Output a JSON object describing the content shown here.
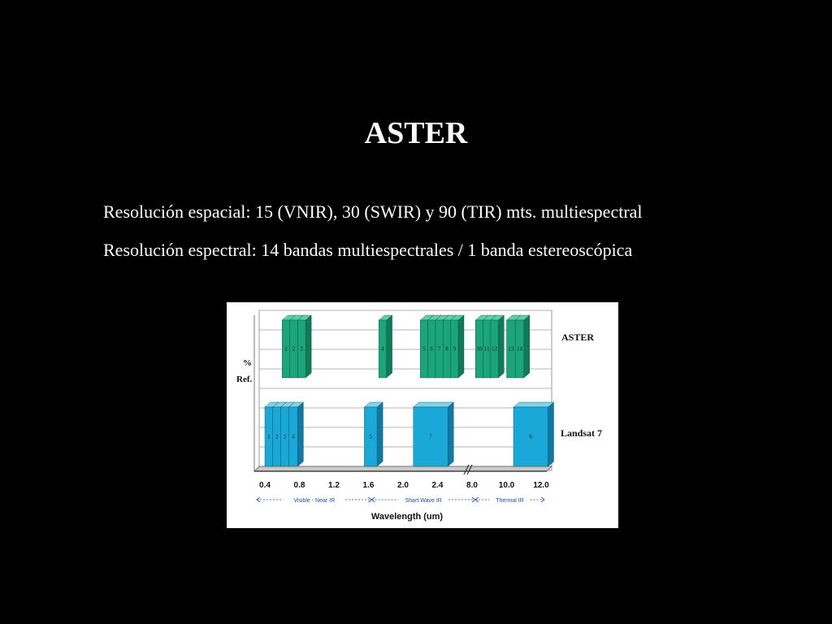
{
  "slide": {
    "title": "ASTER",
    "line1": "Resolución espacial: 15 (VNIR), 30 (SWIR) y 90 (TIR) mts. multiespectral",
    "line2": "Resolución espectral: 14 bandas multiespectrales / 1 banda estereoscópica"
  },
  "chart_data": {
    "type": "bar",
    "xlabel": "Wavelength (um)",
    "ylabel_top": "%",
    "ylabel_bottom": "Ref.",
    "x_ticks": [
      "0.4",
      "0.8",
      "1.2",
      "1.6",
      "2.0",
      "2.4",
      "8.0",
      "10.0",
      "12.0"
    ],
    "regions": [
      "Visible - Near IR",
      "Short Wave IR",
      "Thermal IR"
    ],
    "grid": true,
    "colors": {
      "aster": "#1aa67a",
      "landsat": "#1aa8d8"
    },
    "series": [
      {
        "name": "ASTER",
        "bands": [
          {
            "label": "1",
            "tick_from": 0.5,
            "tick_to": 0.72
          },
          {
            "label": "2",
            "tick_from": 0.72,
            "tick_to": 0.95
          },
          {
            "label": "3",
            "tick_from": 0.95,
            "tick_to": 1.18
          },
          {
            "label": "4",
            "tick_from": 3.3,
            "tick_to": 3.52
          },
          {
            "label": "5",
            "tick_from": 4.5,
            "tick_to": 4.72
          },
          {
            "label": "6",
            "tick_from": 4.72,
            "tick_to": 4.94
          },
          {
            "label": "7",
            "tick_from": 4.94,
            "tick_to": 5.16
          },
          {
            "label": "8",
            "tick_from": 5.16,
            "tick_to": 5.38
          },
          {
            "label": "9",
            "tick_from": 5.38,
            "tick_to": 5.6
          },
          {
            "label": "10",
            "tick_from": 6.1,
            "tick_to": 6.32
          },
          {
            "label": "11",
            "tick_from": 6.32,
            "tick_to": 6.54
          },
          {
            "label": "12",
            "tick_from": 6.54,
            "tick_to": 6.76
          },
          {
            "label": "13",
            "tick_from": 7.0,
            "tick_to": 7.25
          },
          {
            "label": "14",
            "tick_from": 7.25,
            "tick_to": 7.5
          }
        ]
      },
      {
        "name": "Landsat 7",
        "bands": [
          {
            "label": "1",
            "tick_from": 0.0,
            "tick_to": 0.23
          },
          {
            "label": "2",
            "tick_from": 0.23,
            "tick_to": 0.46
          },
          {
            "label": "3",
            "tick_from": 0.46,
            "tick_to": 0.69
          },
          {
            "label": "4",
            "tick_from": 0.69,
            "tick_to": 0.95
          },
          {
            "label": "5",
            "tick_from": 2.88,
            "tick_to": 3.25
          },
          {
            "label": "7",
            "tick_from": 4.3,
            "tick_to": 5.3
          },
          {
            "label": "6",
            "tick_from": 7.2,
            "tick_to": 8.2
          }
        ]
      }
    ]
  }
}
